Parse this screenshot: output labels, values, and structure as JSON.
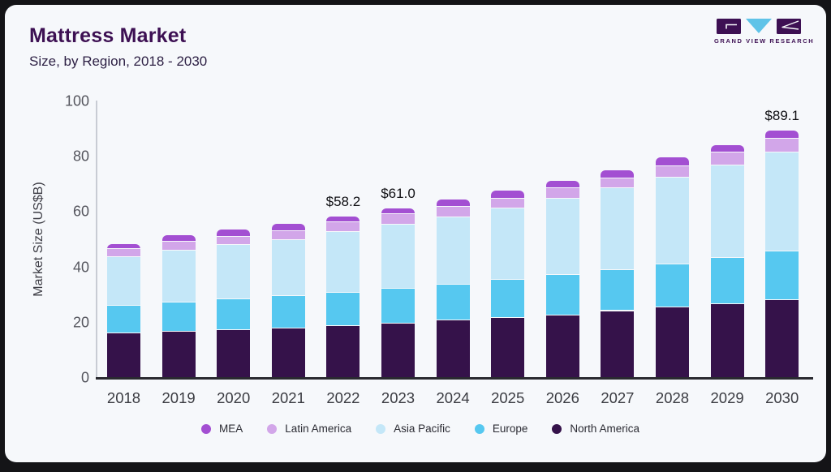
{
  "header": {
    "title": "Mattress Market",
    "subtitle": "Size, by Region, 2018 - 2030"
  },
  "logo": {
    "brand": "GRAND VIEW RESEARCH"
  },
  "chart_data": {
    "type": "bar",
    "stacked": true,
    "title": "Mattress Market Size, by Region, 2018 - 2030",
    "ylabel": "Market Size (US$B)",
    "xlabel": "",
    "ylim": [
      0,
      100
    ],
    "yticks": [
      0,
      20,
      40,
      60,
      80,
      100
    ],
    "grid": false,
    "legend_position": "bottom",
    "categories": [
      "2018",
      "2019",
      "2020",
      "2021",
      "2022",
      "2023",
      "2024",
      "2025",
      "2026",
      "2027",
      "2028",
      "2029",
      "2030"
    ],
    "series": [
      {
        "name": "North America",
        "color": "#35124a",
        "values": [
          15.7,
          16.4,
          17.1,
          17.7,
          18.6,
          19.5,
          20.6,
          21.4,
          22.3,
          23.9,
          25.1,
          26.5,
          28.0
        ]
      },
      {
        "name": "Europe",
        "color": "#56c8f0",
        "values": [
          10.0,
          10.6,
          11.0,
          11.6,
          11.9,
          12.5,
          12.8,
          13.7,
          14.6,
          14.8,
          15.7,
          16.7,
          17.5
        ]
      },
      {
        "name": "Asia Pacific",
        "color": "#c4e7f8",
        "values": [
          17.8,
          18.8,
          19.6,
          20.4,
          21.9,
          23.1,
          24.3,
          25.9,
          27.6,
          29.5,
          31.3,
          33.3,
          35.6
        ]
      },
      {
        "name": "Latin America",
        "color": "#d2a6e9",
        "values": [
          2.8,
          3.2,
          3.0,
          3.0,
          3.5,
          3.7,
          3.9,
          3.6,
          3.7,
          3.6,
          4.1,
          4.6,
          5.2
        ]
      },
      {
        "name": "MEA",
        "color": "#a34fd2",
        "values": [
          1.9,
          2.2,
          2.6,
          2.8,
          2.3,
          2.2,
          2.5,
          2.8,
          2.8,
          3.1,
          3.2,
          2.9,
          2.8
        ]
      }
    ],
    "totals": [
      48.2,
      51.2,
      53.3,
      55.5,
      58.2,
      61.0,
      64.1,
      67.4,
      71.0,
      74.9,
      79.4,
      84.0,
      89.1
    ],
    "annotations": [
      {
        "category": "2022",
        "label": "$58.2"
      },
      {
        "category": "2023",
        "label": "$61.0"
      },
      {
        "category": "2030",
        "label": "$89.1"
      }
    ]
  },
  "legend": {
    "items": [
      {
        "label": "MEA",
        "color": "#a34fd2"
      },
      {
        "label": "Latin America",
        "color": "#d2a6e9"
      },
      {
        "label": "Asia Pacific",
        "color": "#c4e7f8"
      },
      {
        "label": "Europe",
        "color": "#56c8f0"
      },
      {
        "label": "North America",
        "color": "#35124a"
      }
    ]
  }
}
